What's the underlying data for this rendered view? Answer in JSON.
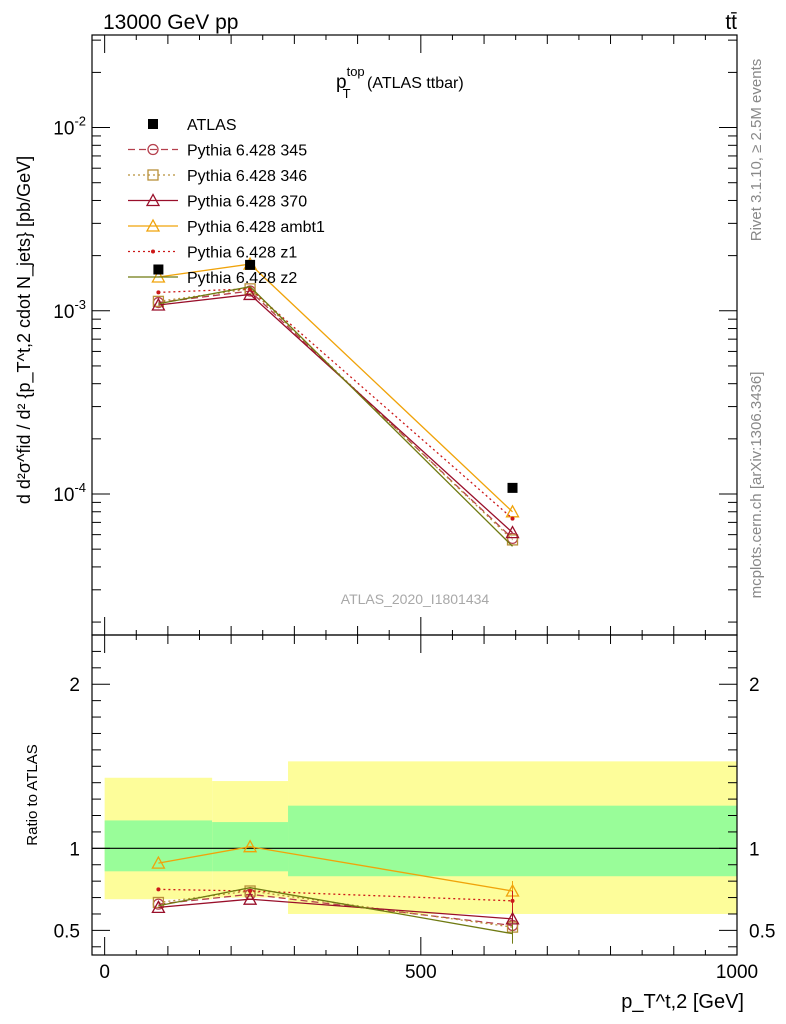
{
  "header": {
    "left": "13000 GeV pp",
    "right": "tt̄"
  },
  "side_labels": {
    "rivet": "Rivet 3.1.10, ≥ 2.5M events",
    "mcplots": "mcplots.cern.ch [arXiv:1306.3436]"
  },
  "plot_title": {
    "base": "p",
    "sup": "top",
    "sub": "T",
    "rest": " (ATLAS ttbar)"
  },
  "watermark": "ATLAS_2020_I1801434",
  "y_label_main": "d d²σ^fid / d² {p_T^t,2 cdot N_jets} [pb/GeV]",
  "y_label_ratio": "Ratio to ATLAS",
  "x_label": "p_T^t,2 [GeV]",
  "chart_data": {
    "type": "scatter",
    "x_axis": {
      "range": [
        -20,
        1000
      ],
      "ticks": [
        0,
        500,
        1000
      ],
      "scale": "linear"
    },
    "main": {
      "y_scale": "log",
      "y_range": [
        1.7e-05,
        0.032
      ],
      "y_ticks": [
        "10^-4",
        "10^-3",
        "10^-2"
      ],
      "y_tick_values": [
        0.0001,
        0.001,
        0.01
      ]
    },
    "ratio": {
      "y_range": [
        0.35,
        2.3
      ],
      "y_ticks": [
        "0.5",
        "1",
        "2"
      ],
      "y_tick_values": [
        0.5,
        1,
        2
      ]
    },
    "bins": [
      {
        "low": 0,
        "high": 170,
        "center": 85
      },
      {
        "low": 170,
        "high": 290,
        "center": 230
      },
      {
        "low": 290,
        "high": 1000,
        "center": 645
      }
    ],
    "data": {
      "name": "ATLAS",
      "values": [
        0.00168,
        0.00178,
        0.000108
      ],
      "band_stat": [
        [
          0.86,
          1.17
        ],
        [
          0.86,
          1.16
        ],
        [
          0.83,
          1.26
        ]
      ],
      "band_total": [
        [
          0.69,
          1.43
        ],
        [
          0.7,
          1.41
        ],
        [
          0.6,
          1.53
        ]
      ]
    },
    "series": [
      {
        "name": "Pythia 6.428 345",
        "color": "#b5404d",
        "dash": "7,4",
        "marker": "circle",
        "ratios": [
          0.66,
          0.72,
          0.53
        ]
      },
      {
        "name": "Pythia 6.428 346",
        "color": "#b8903a",
        "dash": "2,3",
        "marker": "square",
        "ratios": [
          0.67,
          0.74,
          0.52
        ]
      },
      {
        "name": "Pythia 6.428 370",
        "color": "#990f2a",
        "dash": "",
        "marker": "triangle",
        "ratios": [
          0.64,
          0.69,
          0.57
        ]
      },
      {
        "name": "Pythia 6.428 ambt1",
        "color": "#f0a30a",
        "dash": "",
        "marker": "triangle",
        "ratios": [
          0.91,
          1.01,
          0.74
        ]
      },
      {
        "name": "Pythia 6.428 z1",
        "color": "#cc1818",
        "dash": "2,3",
        "marker": "dot",
        "ratios": [
          0.75,
          0.74,
          0.68
        ]
      },
      {
        "name": "Pythia 6.428 z2",
        "color": "#6f7a12",
        "dash": "",
        "marker": "none",
        "ratios": [
          0.65,
          0.76,
          0.48
        ]
      }
    ]
  }
}
